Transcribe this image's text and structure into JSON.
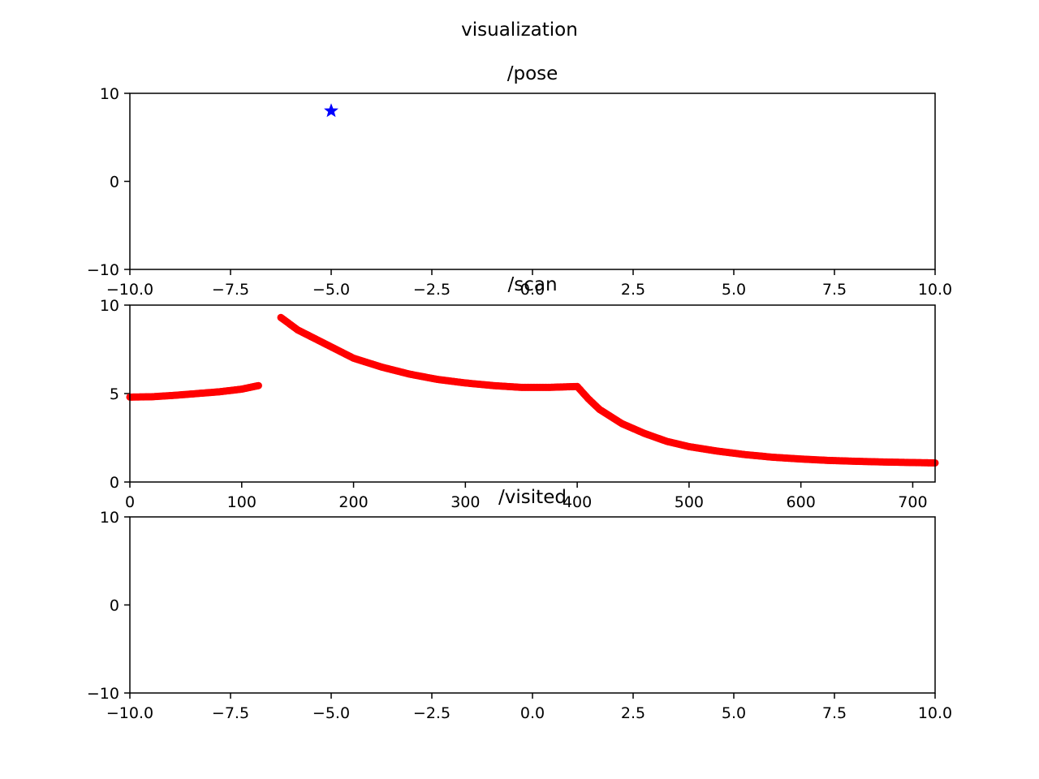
{
  "figure": {
    "title": "visualization"
  },
  "colors": {
    "pose_marker": "#0000ff",
    "scan_points": "#ff0000",
    "axes": "#000000",
    "background": "#ffffff"
  },
  "chart_data": [
    {
      "type": "scatter",
      "title": "/pose",
      "xlabel": "",
      "ylabel": "",
      "xlim": [
        -10,
        10
      ],
      "ylim": [
        -10,
        10
      ],
      "xticks": [
        "−10.0",
        "−7.5",
        "−5.0",
        "−2.5",
        "0.0",
        "2.5",
        "5.0",
        "7.5",
        "10.0"
      ],
      "yticks": [
        "−10",
        "0",
        "10"
      ],
      "xtick_values": [
        -10,
        -7.5,
        -5,
        -2.5,
        0,
        2.5,
        5,
        7.5,
        10
      ],
      "ytick_values": [
        -10,
        0,
        10
      ],
      "marker": "star",
      "points": [
        {
          "x": -5.0,
          "y": 8.0
        }
      ],
      "grid": false
    },
    {
      "type": "scatter",
      "title": "/scan",
      "xlabel": "",
      "ylabel": "",
      "xlim": [
        0,
        720
      ],
      "ylim": [
        0,
        10
      ],
      "xticks": [
        "0",
        "100",
        "200",
        "300",
        "400",
        "500",
        "600",
        "700"
      ],
      "yticks": [
        "0",
        "5",
        "10"
      ],
      "xtick_values": [
        0,
        100,
        200,
        300,
        400,
        500,
        600,
        700
      ],
      "ytick_values": [
        0,
        5,
        10
      ],
      "marker": "dot",
      "segments": [
        {
          "x_start": 0,
          "x_end": 115,
          "x": [
            0,
            20,
            40,
            60,
            80,
            100,
            115
          ],
          "y": [
            4.8,
            4.82,
            4.9,
            5.0,
            5.1,
            5.25,
            5.45
          ]
        },
        {
          "x_start": 135,
          "x_end": 720,
          "x": [
            135,
            150,
            175,
            200,
            225,
            250,
            275,
            300,
            325,
            350,
            375,
            400,
            410,
            420,
            440,
            460,
            480,
            500,
            525,
            550,
            575,
            600,
            625,
            650,
            675,
            700,
            720
          ],
          "y": [
            9.3,
            8.6,
            7.8,
            7.0,
            6.5,
            6.1,
            5.8,
            5.6,
            5.45,
            5.35,
            5.35,
            5.4,
            4.7,
            4.1,
            3.3,
            2.75,
            2.3,
            2.0,
            1.75,
            1.55,
            1.4,
            1.3,
            1.22,
            1.17,
            1.13,
            1.1,
            1.08
          ]
        }
      ],
      "grid": false
    },
    {
      "type": "scatter",
      "title": "/visited",
      "xlabel": "",
      "ylabel": "",
      "xlim": [
        -10,
        10
      ],
      "ylim": [
        -10,
        10
      ],
      "xticks": [
        "−10.0",
        "−7.5",
        "−5.0",
        "−2.5",
        "0.0",
        "2.5",
        "5.0",
        "7.5",
        "10.0"
      ],
      "yticks": [
        "−10",
        "0",
        "10"
      ],
      "xtick_values": [
        -10,
        -7.5,
        -5,
        -2.5,
        0,
        2.5,
        5,
        7.5,
        10
      ],
      "ytick_values": [
        -10,
        0,
        10
      ],
      "points": [],
      "grid": false
    }
  ]
}
